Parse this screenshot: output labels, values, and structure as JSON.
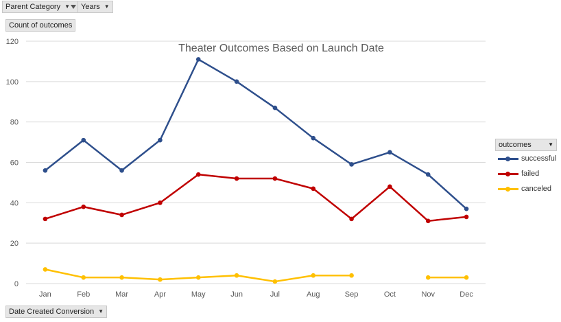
{
  "filters": {
    "parent_category": "Parent Category",
    "years": "Years",
    "count_of_outcomes": "Count of outcomes",
    "date_created": "Date Created Conversion"
  },
  "chart_data": {
    "type": "line",
    "title": "Theater Outcomes Based on Launch Date",
    "xlabel": "",
    "ylabel": "",
    "categories": [
      "Jan",
      "Feb",
      "Mar",
      "Apr",
      "May",
      "Jun",
      "Jul",
      "Aug",
      "Sep",
      "Oct",
      "Nov",
      "Dec"
    ],
    "ylim": [
      0,
      120
    ],
    "yticks": [
      0,
      20,
      40,
      60,
      80,
      100,
      120
    ],
    "grid": true,
    "legend_title": "outcomes",
    "legend_position": "right",
    "series": [
      {
        "name": "successful",
        "color": "#2e4f8c",
        "values": [
          56,
          71,
          56,
          71,
          111,
          100,
          87,
          72,
          59,
          65,
          54,
          37
        ]
      },
      {
        "name": "failed",
        "color": "#c00000",
        "values": [
          32,
          38,
          34,
          40,
          54,
          52,
          52,
          47,
          32,
          48,
          31,
          33
        ]
      },
      {
        "name": "canceled",
        "color": "#ffc000",
        "values": [
          7,
          3,
          3,
          2,
          3,
          4,
          1,
          4,
          4,
          null,
          3,
          3
        ]
      }
    ]
  }
}
